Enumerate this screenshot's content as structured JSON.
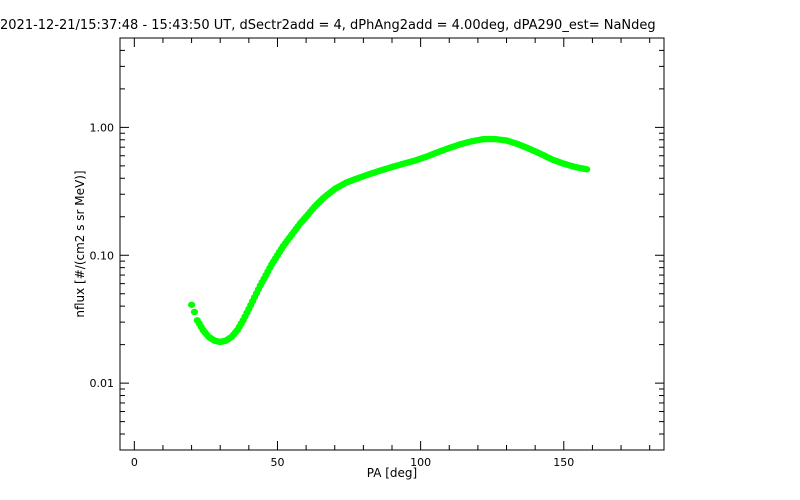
{
  "chart_data": {
    "type": "scatter",
    "title": "2021-12-21/15:37:48 - 15:43:50 UT, dSectr2add = 4, dPhAng2add = 4.00deg, dPA290_est=   NaNdeg",
    "xlabel": "PA [deg]",
    "ylabel": "nflux [#/(cm2 s sr MeV)]",
    "xlim": [
      -5,
      185
    ],
    "ylim": [
      0.003,
      5
    ],
    "yscale": "log",
    "grid": false,
    "x_ticks": [
      0,
      50,
      100,
      150
    ],
    "x_tick_labels": [
      "0",
      "50",
      "100",
      "150"
    ],
    "y_ticks": [
      0.01,
      0.1,
      1.0
    ],
    "y_tick_labels": [
      "0.01",
      "0.10",
      "1.00"
    ],
    "series_color": "#00ff00",
    "series": [
      {
        "x": [
          20,
          21,
          22,
          24,
          26,
          28,
          30,
          32,
          34,
          36,
          38,
          40,
          42,
          44,
          46,
          48,
          50,
          52,
          55,
          58,
          60,
          63,
          66,
          70,
          74,
          78,
          82,
          86,
          90,
          94,
          98,
          102,
          106,
          110,
          114,
          118,
          122,
          126,
          130,
          134,
          138,
          142,
          146,
          150,
          154,
          158
        ],
        "y": [
          0.041,
          0.036,
          0.031,
          0.026,
          0.023,
          0.0215,
          0.021,
          0.0215,
          0.023,
          0.026,
          0.031,
          0.038,
          0.047,
          0.058,
          0.07,
          0.085,
          0.1,
          0.118,
          0.145,
          0.178,
          0.2,
          0.24,
          0.28,
          0.33,
          0.37,
          0.4,
          0.43,
          0.46,
          0.49,
          0.52,
          0.55,
          0.59,
          0.64,
          0.69,
          0.74,
          0.78,
          0.81,
          0.81,
          0.79,
          0.74,
          0.68,
          0.62,
          0.56,
          0.52,
          0.49,
          0.47
        ]
      }
    ]
  }
}
